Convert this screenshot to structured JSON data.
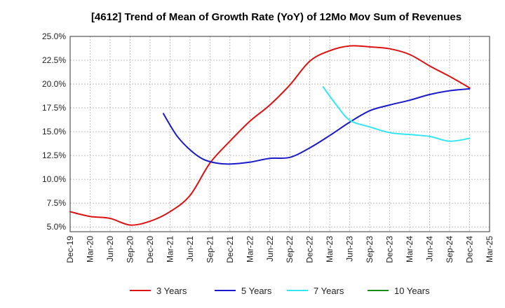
{
  "chart_data": {
    "type": "line",
    "title": "[4612]  Trend of Mean of Growth Rate (YoY) of 12Mo Mov Sum of Revenues",
    "xlabel": "",
    "ylabel": "",
    "ylim": [
      4.5,
      25.0
    ],
    "y_ticks": [
      5.0,
      7.5,
      10.0,
      12.5,
      15.0,
      17.5,
      20.0,
      22.5,
      25.0
    ],
    "y_tick_labels": [
      "5.0%",
      "7.5%",
      "10.0%",
      "12.5%",
      "15.0%",
      "17.5%",
      "20.0%",
      "22.5%",
      "25.0%"
    ],
    "x_tick_labels": [
      "Dec-19",
      "Mar-20",
      "Jun-20",
      "Sep-20",
      "Dec-20",
      "Mar-21",
      "Jun-21",
      "Sep-21",
      "Dec-21",
      "Mar-22",
      "Jun-22",
      "Sep-22",
      "Dec-22",
      "Mar-23",
      "Jun-23",
      "Sep-23",
      "Dec-23",
      "Mar-24",
      "Jun-24",
      "Sep-24",
      "Dec-24",
      "Mar-25"
    ],
    "x_months_total": 63,
    "grid": true,
    "legend_position": "bottom",
    "series": [
      {
        "name": "3 Years",
        "color": "#dd1111",
        "x": [
          0,
          3,
          6,
          9,
          12,
          15,
          18,
          21,
          24,
          27,
          30,
          33,
          36,
          39,
          42,
          45,
          48,
          51,
          54,
          57,
          60
        ],
        "values": [
          6.6,
          6.1,
          5.9,
          5.2,
          5.6,
          6.6,
          8.3,
          11.7,
          14.0,
          16.1,
          17.8,
          19.9,
          22.4,
          23.5,
          24.0,
          23.9,
          23.7,
          23.1,
          21.9,
          20.8,
          19.6
        ]
      },
      {
        "name": "5 Years",
        "color": "#1a1acc",
        "x": [
          14,
          16,
          18,
          20,
          22,
          24,
          27,
          30,
          33,
          36,
          39,
          42,
          45,
          48,
          51,
          54,
          57,
          60
        ],
        "values": [
          16.9,
          14.6,
          13.1,
          12.1,
          11.7,
          11.6,
          11.8,
          12.2,
          12.3,
          13.3,
          14.6,
          16.0,
          17.2,
          17.8,
          18.3,
          18.9,
          19.3,
          19.5
        ]
      },
      {
        "name": "7 Years",
        "color": "#33e6f2",
        "x": [
          38,
          40,
          42,
          45,
          48,
          51,
          54,
          57,
          60
        ],
        "values": [
          19.7,
          17.8,
          16.2,
          15.5,
          14.9,
          14.7,
          14.5,
          14.0,
          14.3
        ]
      },
      {
        "name": "10 Years",
        "color": "#1a8c1a",
        "x": [],
        "values": []
      }
    ]
  }
}
